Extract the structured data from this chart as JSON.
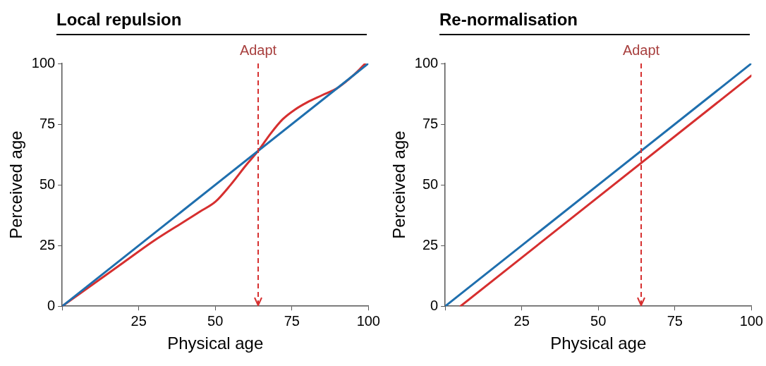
{
  "chart_data": [
    {
      "type": "line",
      "title": "Local repulsion",
      "xlabel": "Physical age",
      "ylabel": "Perceived age",
      "xlim": [
        0,
        100
      ],
      "ylim": [
        0,
        100
      ],
      "xticks": [
        {
          "value": 0,
          "label": null
        },
        25,
        50,
        75,
        100
      ],
      "yticks": [
        0,
        25,
        50,
        75,
        100
      ],
      "grid": false,
      "legend": false,
      "series": [
        {
          "color": "#1f6fae",
          "x": [
            0,
            100
          ],
          "values": [
            0,
            100
          ]
        },
        {
          "color": "#d62f2f",
          "x": [
            0,
            10,
            20,
            30,
            40,
            45,
            50,
            55,
            60,
            64,
            68,
            72,
            76,
            80,
            85,
            90,
            95,
            99
          ],
          "values": [
            0,
            9,
            18,
            27,
            35,
            39,
            43,
            50,
            58,
            64,
            71,
            77,
            81,
            84,
            87,
            90,
            95,
            100
          ]
        }
      ],
      "ref_lines": [
        {
          "axis": "x",
          "value": 64,
          "label": "Adapt",
          "color": "#d62f2f",
          "line_style": "dashed"
        }
      ]
    },
    {
      "type": "line",
      "title": "Re-normalisation",
      "xlabel": "Physical age",
      "ylabel": "Perceived age",
      "xlim": [
        0,
        100
      ],
      "ylim": [
        0,
        100
      ],
      "xticks": [
        {
          "value": 0,
          "label": null
        },
        25,
        50,
        75,
        100
      ],
      "yticks": [
        0,
        25,
        50,
        75,
        100
      ],
      "grid": false,
      "legend": false,
      "series": [
        {
          "color": "#1f6fae",
          "x": [
            0,
            100
          ],
          "values": [
            0,
            100
          ]
        },
        {
          "color": "#d62f2f",
          "x": [
            5,
            100
          ],
          "values": [
            0,
            95
          ]
        }
      ],
      "ref_lines": [
        {
          "axis": "x",
          "value": 64,
          "label": "Adapt",
          "color": "#d62f2f",
          "line_style": "dashed"
        }
      ]
    }
  ]
}
